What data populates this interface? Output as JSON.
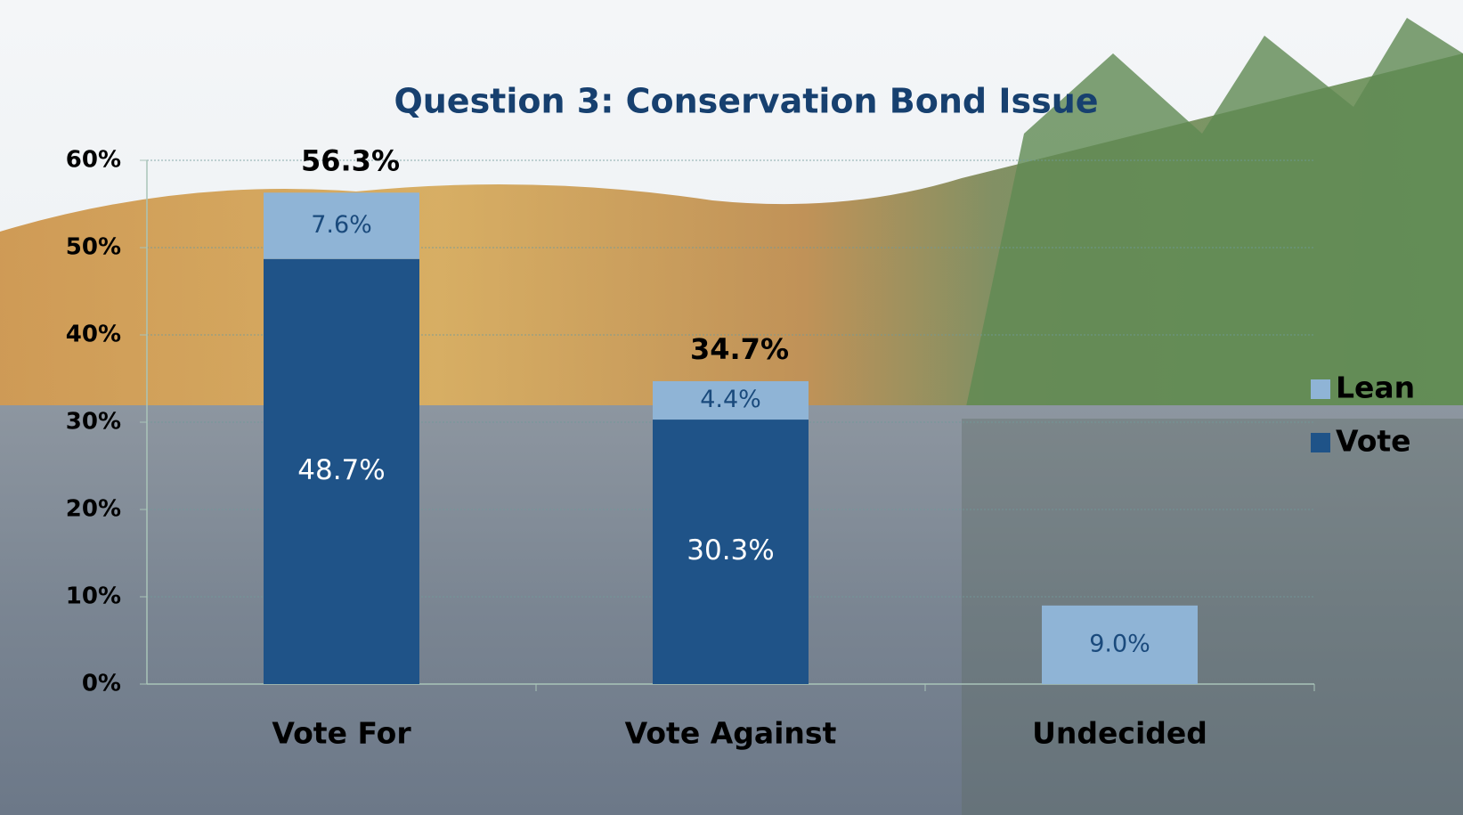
{
  "chart_data": {
    "type": "stacked-bar",
    "title": "Question 3: Conservation Bond Issue",
    "categories": [
      "Vote For",
      "Vote Against",
      "Undecided"
    ],
    "series": [
      {
        "name": "Vote",
        "color": "#1f5388",
        "values": [
          48.7,
          30.3,
          null
        ],
        "value_labels": [
          "48.7%",
          "30.3%",
          null
        ]
      },
      {
        "name": "Lean",
        "color": "#8fb4d6",
        "values": [
          7.6,
          4.4,
          9.0
        ],
        "value_labels": [
          "7.6%",
          "4.4%",
          "9.0%"
        ]
      }
    ],
    "totals": [
      56.3,
      34.7,
      null
    ],
    "total_labels": [
      "56.3%",
      "34.7%",
      null
    ],
    "ylim": [
      0,
      60
    ],
    "yticks": [
      {
        "value": 0,
        "label": "0%"
      },
      {
        "value": 10,
        "label": "10%"
      },
      {
        "value": 20,
        "label": "20%"
      },
      {
        "value": 30,
        "label": "30%"
      },
      {
        "value": 40,
        "label": "40%"
      },
      {
        "value": 50,
        "label": "50%"
      },
      {
        "value": 60,
        "label": "60%"
      }
    ],
    "grid": true,
    "legend": "right"
  }
}
